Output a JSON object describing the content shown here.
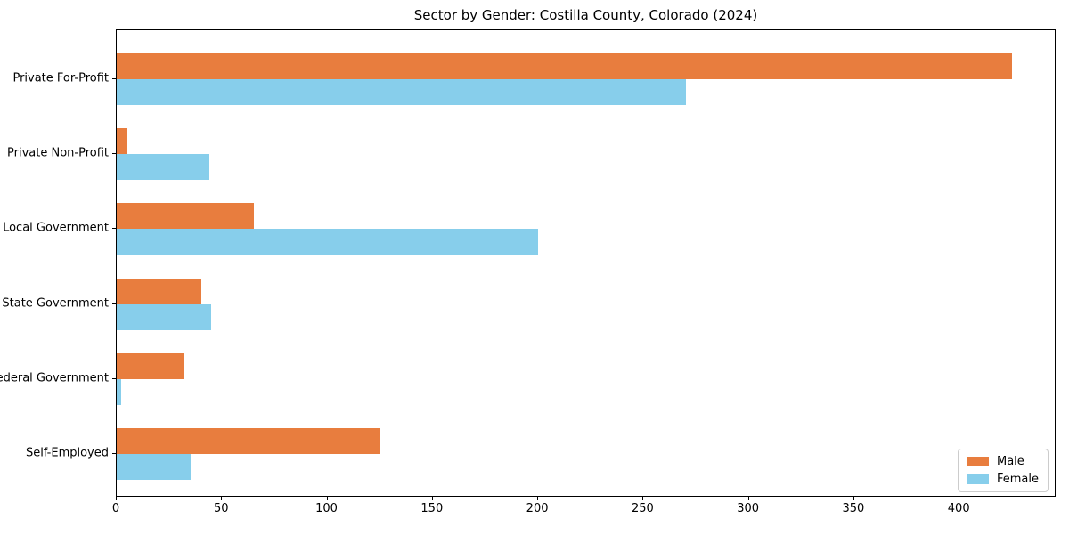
{
  "chart_data": {
    "type": "bar",
    "orientation": "horizontal",
    "title": "Sector by Gender: Costilla County, Colorado (2024)",
    "categories": [
      "Private For-Profit",
      "Private Non-Profit",
      "Local Government",
      "State Government",
      "Federal Government",
      "Self-Employed"
    ],
    "series": [
      {
        "name": "Male",
        "color": "#e87d3e",
        "values": [
          425,
          5,
          65,
          40,
          32,
          125
        ]
      },
      {
        "name": "Female",
        "color": "#87ceeb",
        "values": [
          270,
          44,
          200,
          45,
          2,
          35
        ]
      }
    ],
    "xlabel": "",
    "ylabel": "",
    "xlim": [
      0,
      446
    ],
    "x_ticks": [
      0,
      50,
      100,
      150,
      200,
      250,
      300,
      350,
      400
    ],
    "grid": false,
    "legend_position": "lower right",
    "legend_entries": [
      "Male",
      "Female"
    ]
  }
}
